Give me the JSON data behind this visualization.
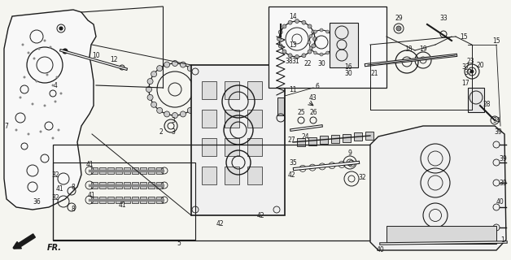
{
  "bg_color": "#f5f5f0",
  "line_color": "#1a1a1a",
  "fig_width": 6.28,
  "fig_height": 3.2,
  "dpi": 100
}
